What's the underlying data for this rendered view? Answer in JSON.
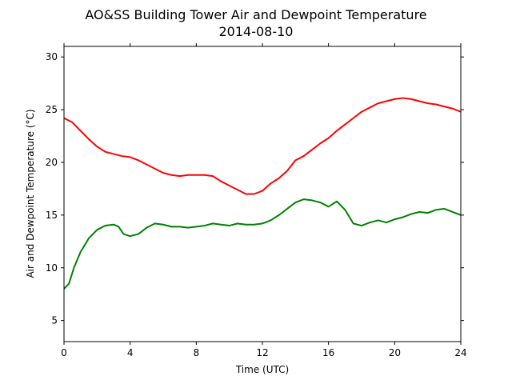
{
  "chart_data": {
    "type": "line",
    "title": "AO&SS Building Tower Air and Dewpoint Temperature",
    "subtitle": "2014-08-10",
    "xlabel": "Time (UTC)",
    "ylabel": "Air and Dewpoint Temperature (°C)",
    "xlim": [
      0,
      24
    ],
    "ylim": [
      3,
      31
    ],
    "xticks": [
      0,
      4,
      8,
      12,
      16,
      20,
      24
    ],
    "yticks": [
      5,
      10,
      15,
      20,
      25,
      30
    ],
    "grid": false,
    "series": [
      {
        "color": "#ff0000",
        "x": [
          0,
          0.5,
          1,
          1.5,
          2,
          2.5,
          3,
          3.5,
          4,
          4.5,
          5,
          5.5,
          6,
          6.5,
          7,
          7.5,
          8,
          8.5,
          9,
          9.5,
          10,
          10.5,
          11,
          11.5,
          12,
          12.5,
          13,
          13.5,
          14,
          14.5,
          15,
          15.5,
          16,
          16.5,
          17,
          17.5,
          18,
          18.5,
          19,
          19.5,
          20,
          20.5,
          21,
          21.5,
          22,
          22.5,
          23,
          23.5,
          24
        ],
        "values": [
          24.2,
          23.8,
          23.0,
          22.2,
          21.5,
          21.0,
          20.8,
          20.6,
          20.5,
          20.2,
          19.8,
          19.4,
          19.0,
          18.8,
          18.7,
          18.8,
          18.8,
          18.8,
          18.7,
          18.2,
          17.8,
          17.4,
          17.0,
          17.0,
          17.3,
          18.0,
          18.5,
          19.2,
          20.2,
          20.6,
          21.2,
          21.8,
          22.3,
          23.0,
          23.6,
          24.2,
          24.8,
          25.2,
          25.6,
          25.8,
          26.0,
          26.1,
          26.0,
          25.8,
          25.6,
          25.5,
          25.3,
          25.1,
          24.8
        ]
      },
      {
        "color": "#008000",
        "x": [
          0,
          0.3,
          0.6,
          1,
          1.5,
          2,
          2.5,
          3,
          3.3,
          3.6,
          4,
          4.5,
          5,
          5.5,
          6,
          6.5,
          7,
          7.5,
          8,
          8.5,
          9,
          9.5,
          10,
          10.5,
          11,
          11.5,
          12,
          12.5,
          13,
          13.5,
          14,
          14.5,
          15,
          15.5,
          16,
          16.5,
          17,
          17.5,
          18,
          18.5,
          19,
          19.5,
          20,
          20.5,
          21,
          21.5,
          22,
          22.5,
          23,
          23.5,
          24
        ],
        "values": [
          8.0,
          8.5,
          10.0,
          11.5,
          12.8,
          13.6,
          14.0,
          14.1,
          13.9,
          13.2,
          13.0,
          13.2,
          13.8,
          14.2,
          14.1,
          13.9,
          13.9,
          13.8,
          13.9,
          14.0,
          14.2,
          14.1,
          14.0,
          14.2,
          14.1,
          14.1,
          14.2,
          14.5,
          15.0,
          15.6,
          16.2,
          16.5,
          16.4,
          16.2,
          15.8,
          16.3,
          15.5,
          14.2,
          14.0,
          14.3,
          14.5,
          14.3,
          14.6,
          14.8,
          15.1,
          15.3,
          15.2,
          15.5,
          15.6,
          15.3,
          15.0
        ]
      }
    ]
  }
}
